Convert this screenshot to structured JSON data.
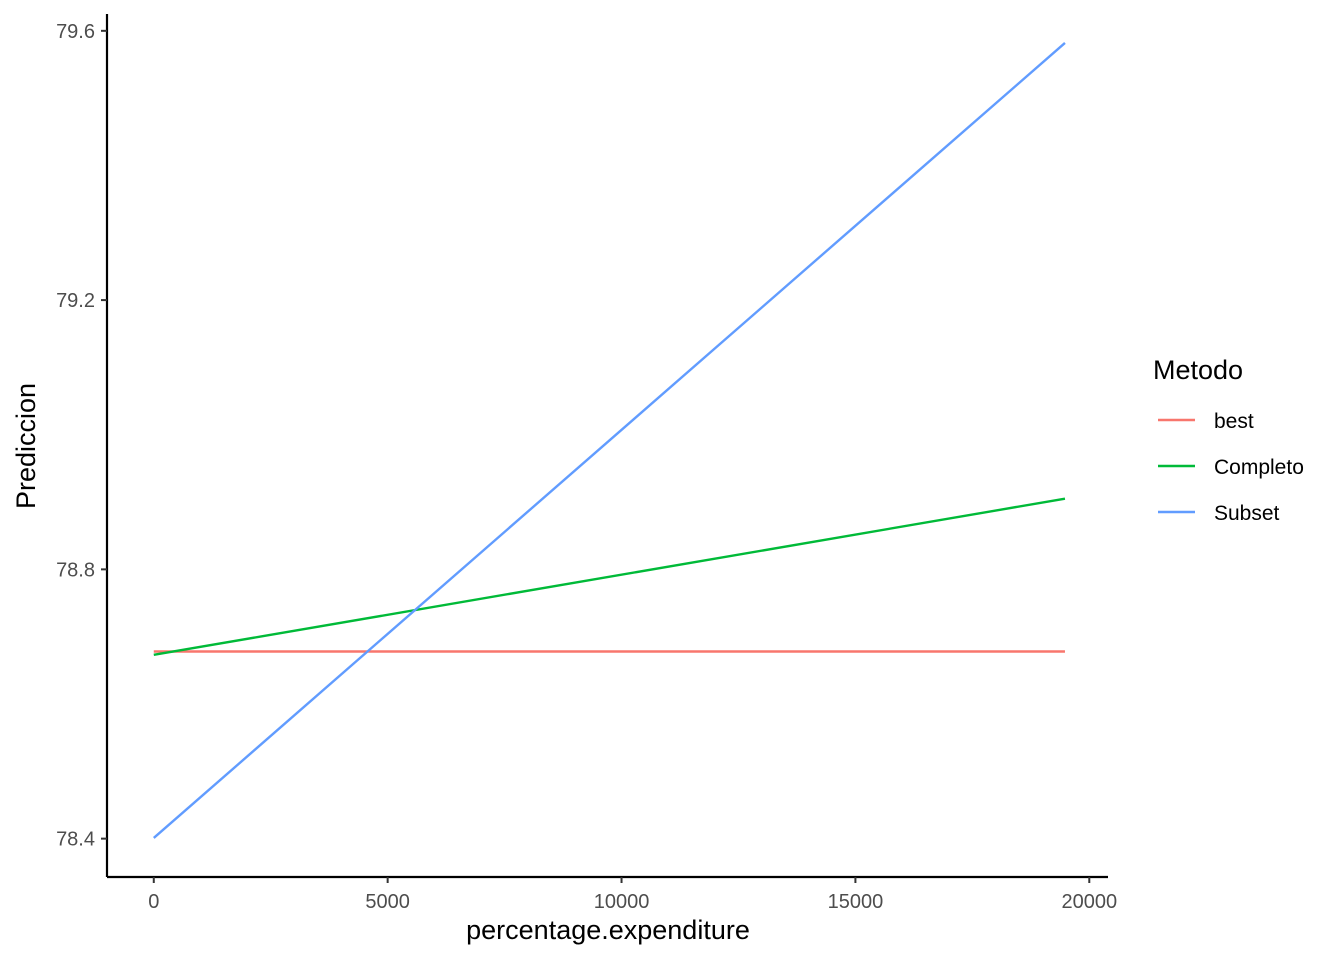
{
  "chart_data": {
    "type": "line",
    "xlabel": "percentage.expenditure",
    "ylabel": "Prediccion",
    "xlim": [
      -1000,
      20400
    ],
    "ylim": [
      78.343,
      79.625
    ],
    "xticks": [
      0,
      5000,
      10000,
      15000,
      20000
    ],
    "xtick_labels": [
      "0",
      "5000",
      "10000",
      "15000",
      "20000"
    ],
    "yticks": [
      78.4,
      78.8,
      79.2,
      79.6
    ],
    "ytick_labels": [
      "78.4",
      "78.8",
      "79.2",
      "79.6"
    ],
    "grid": false,
    "legend": {
      "title": "Metodo",
      "placement": "right"
    },
    "series": [
      {
        "name": "best",
        "color": "#F8766D",
        "x": [
          0,
          19480
        ],
        "y": [
          78.678,
          78.678
        ]
      },
      {
        "name": "Completo",
        "color": "#00BA38",
        "x": [
          0,
          19480
        ],
        "y": [
          78.673,
          78.905
        ]
      },
      {
        "name": "Subset",
        "color": "#619CFF",
        "x": [
          0,
          19480
        ],
        "y": [
          78.401,
          79.582
        ]
      }
    ]
  }
}
